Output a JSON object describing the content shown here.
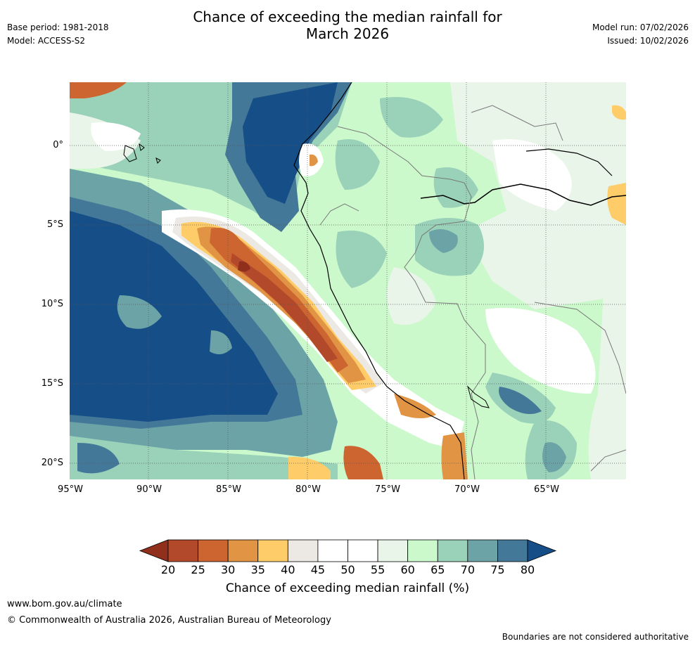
{
  "title_line1": "Chance of exceeding the median rainfall for",
  "title_line2": "March 2026",
  "base_period": "Base period: 1981-2018",
  "model": "Model: ACCESS-S2",
  "model_run": "Model run: 07/02/2026",
  "issued": "Issued: 10/02/2026",
  "lat_labels": [
    "0°",
    "5°S",
    "10°S",
    "15°S",
    "20°S"
  ],
  "lon_labels": [
    "95°W",
    "90°W",
    "85°W",
    "80°W",
    "75°W",
    "70°W",
    "65°W"
  ],
  "colorbar": {
    "label": "Chance of exceeding median rainfall (%)",
    "ticks": [
      "20",
      "25",
      "30",
      "35",
      "40",
      "45",
      "50",
      "55",
      "60",
      "65",
      "70",
      "75",
      "80"
    ],
    "colors": [
      "#8f2f1c",
      "#b2492b",
      "#cc6530",
      "#e09444",
      "#fecd6a",
      "#ece9e4",
      "#ffffff",
      "#ffffff",
      "#eaf5ea",
      "#ccf9cc",
      "#9ad2b9",
      "#6ca3a7",
      "#437898",
      "#164e87"
    ]
  },
  "footer_url": "www.bom.gov.au/climate",
  "copyright": "© Commonwealth of Australia 2026, Australian Bureau of Meteorology",
  "disclaimer": "Boundaries are not considered authoritative"
}
